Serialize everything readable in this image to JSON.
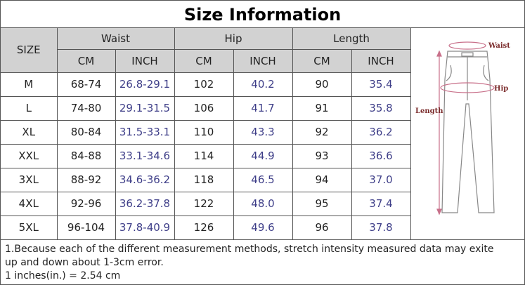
{
  "header": {
    "title": "Size Information"
  },
  "table": {
    "size_label": "SIZE",
    "groups": [
      "Waist",
      "Hip",
      "Length"
    ],
    "units": [
      "CM",
      "INCH",
      "CM",
      "INCH",
      "CM",
      "INCH"
    ],
    "rows": [
      [
        "M",
        "68-74",
        "26.8-29.1",
        "102",
        "40.2",
        "90",
        "35.4"
      ],
      [
        "L",
        "74-80",
        "29.1-31.5",
        "106",
        "41.7",
        "91",
        "35.8"
      ],
      [
        "XL",
        "80-84",
        "31.5-33.1",
        "110",
        "43.3",
        "92",
        "36.2"
      ],
      [
        "XXL",
        "84-88",
        "33.1-34.6",
        "114",
        "44.9",
        "93",
        "36.6"
      ],
      [
        "3XL",
        "88-92",
        "34.6-36.2",
        "118",
        "46.5",
        "94",
        "37.0"
      ],
      [
        "4XL",
        "92-96",
        "36.2-37.8",
        "122",
        "48.0",
        "95",
        "37.4"
      ],
      [
        "5XL",
        "96-104",
        "37.8-40.9",
        "126",
        "49.6",
        "96",
        "37.8"
      ]
    ]
  },
  "diagram": {
    "labels": [
      "Waist",
      "Hip",
      "Length"
    ]
  },
  "notes": [
    "1.Because each of the different measurement methods, stretch intensity measured data may exite up and down  about 1-3cm error.",
    "1 inches(in.) = 2.54 cm"
  ]
}
